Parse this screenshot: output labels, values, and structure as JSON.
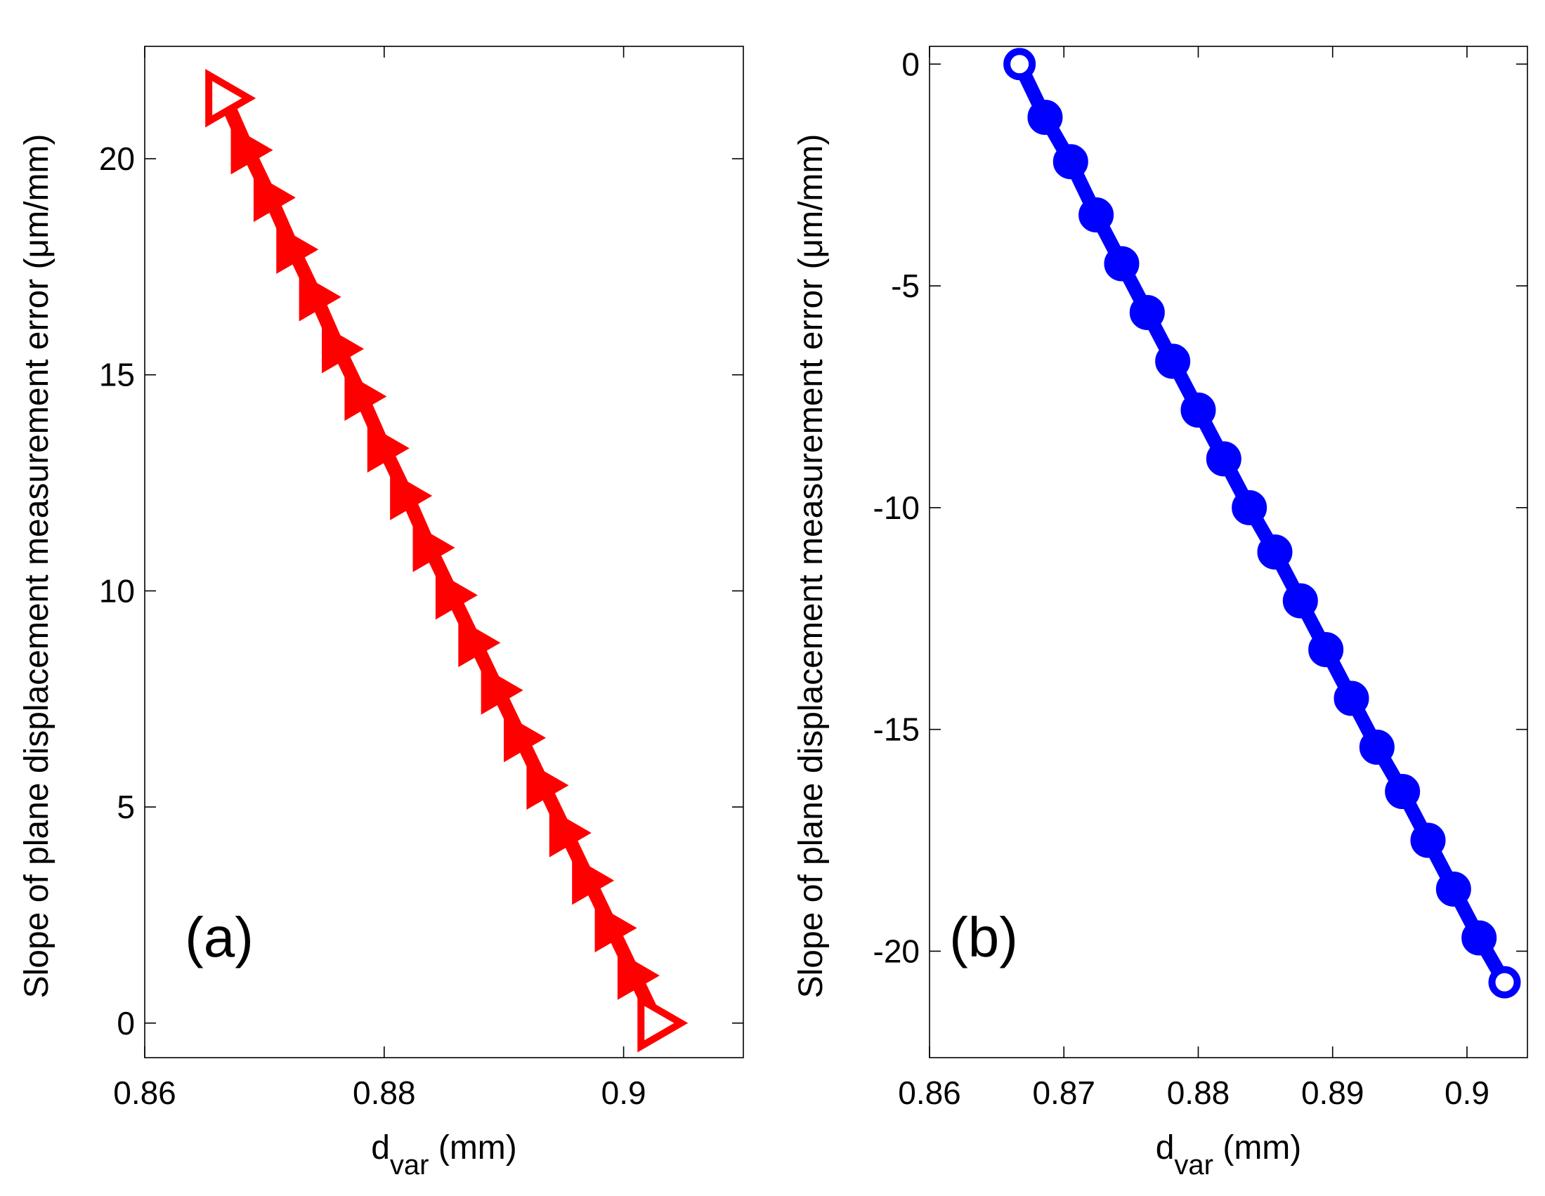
{
  "chart_data": [
    {
      "type": "line",
      "panel_label": "(a)",
      "xlabel_main": "d",
      "xlabel_sub": "var",
      "xlabel_unit": " (mm)",
      "ylabel": "Slope of plane displacement measurement error (μm/mm)",
      "xlim": [
        0.86,
        0.91
      ],
      "ylim": [
        -0.8,
        22.6
      ],
      "xticks": [
        0.86,
        0.88,
        0.9
      ],
      "xtick_labels": [
        "0.86",
        "0.88",
        "0.9"
      ],
      "yticks": [
        0,
        5,
        10,
        15,
        20
      ],
      "ytick_labels": [
        "0",
        "5",
        "10",
        "15",
        "20"
      ],
      "grid": false,
      "color": "#ff0000",
      "marker": "triangle-right",
      "series": [
        {
          "name": "slope",
          "x": [
            0.8667,
            0.8686,
            0.8705,
            0.8724,
            0.8743,
            0.8762,
            0.8781,
            0.88,
            0.8819,
            0.8838,
            0.8857,
            0.8876,
            0.8895,
            0.8914,
            0.8933,
            0.8952,
            0.8971,
            0.899,
            0.9009,
            0.9028
          ],
          "y": [
            21.4,
            20.2,
            19.1,
            17.9,
            16.8,
            15.6,
            14.5,
            13.3,
            12.2,
            11.0,
            9.9,
            8.8,
            7.7,
            6.6,
            5.5,
            4.4,
            3.3,
            2.2,
            1.1,
            0.0
          ]
        }
      ]
    },
    {
      "type": "line",
      "panel_label": "(b)",
      "xlabel_main": "d",
      "xlabel_sub": "var",
      "xlabel_unit": " (mm)",
      "ylabel": "Slope of plane displacement measurement error (μm/mm)",
      "xlim": [
        0.86,
        0.9045
      ],
      "ylim": [
        -22.4,
        0.4
      ],
      "xticks": [
        0.86,
        0.87,
        0.88,
        0.89,
        0.9
      ],
      "xtick_labels": [
        "0.86",
        "0.87",
        "0.88",
        "0.89",
        "0.9"
      ],
      "yticks": [
        0,
        -5,
        -10,
        -15,
        -20
      ],
      "ytick_labels": [
        "0",
        "-5",
        "-10",
        "-15",
        "-20"
      ],
      "grid": false,
      "color": "#0000ff",
      "marker": "circle",
      "series": [
        {
          "name": "slope",
          "x": [
            0.8667,
            0.8686,
            0.8705,
            0.8724,
            0.8743,
            0.8762,
            0.8781,
            0.88,
            0.8819,
            0.8838,
            0.8857,
            0.8876,
            0.8895,
            0.8914,
            0.8933,
            0.8952,
            0.8971,
            0.899,
            0.9009,
            0.9028
          ],
          "y": [
            0.0,
            -1.2,
            -2.2,
            -3.4,
            -4.5,
            -5.6,
            -6.7,
            -7.8,
            -8.9,
            -10.0,
            -11.0,
            -12.1,
            -13.2,
            -14.3,
            -15.4,
            -16.4,
            -17.5,
            -18.6,
            -19.7,
            -20.7
          ]
        }
      ]
    }
  ]
}
